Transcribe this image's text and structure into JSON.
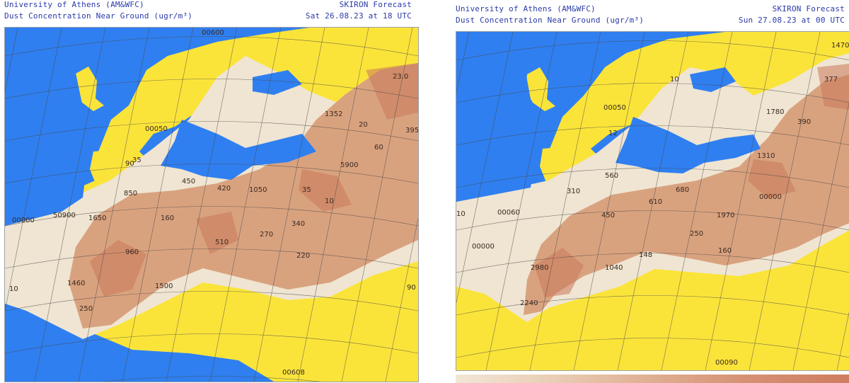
{
  "colors": {
    "sea": "#2f7ff0",
    "no_dust": "#fbe43a",
    "light_dust": "#efe5d2",
    "medium_dust": "#d9a27f",
    "high_dust": "#c9785a",
    "header_text": "#2a3aa8",
    "borders": "#4a4a4a"
  },
  "panels": [
    {
      "header_left_1": "University of Athens (AM&WFC)",
      "header_left_2": "Dust Concentration Near Ground (ugr/m³)",
      "header_right_1": "SKIRON Forecast",
      "header_right_2": "Sat 26.08.23 at 18 UTC",
      "labels": [
        "00600",
        "23.0",
        "1352",
        "395",
        "20",
        "60",
        "35",
        "00050",
        "90",
        "5900",
        "450",
        "420",
        "1050",
        "35",
        "10",
        "00000",
        "850",
        "1650",
        "50900",
        "160",
        "340",
        "270",
        "960",
        "510",
        "220",
        "1460",
        "1500",
        "250",
        "90",
        "00608",
        "10"
      ]
    },
    {
      "header_left_1": "University of Athens (AM&WFC)",
      "header_left_2": "Dust Concentration Near Ground (ugr/m³)",
      "header_right_1": "SKIRON Forecast",
      "header_right_2": "Sun 27.08.23 at 00 UTC",
      "labels": [
        "1470",
        "377",
        "10",
        "1780",
        "390",
        "00050",
        "12",
        "1310",
        "560",
        "00000",
        "680",
        "310",
        "610",
        "10",
        "00060",
        "450",
        "1970",
        "00000",
        "250",
        "148",
        "160",
        "2980",
        "1040",
        "2240",
        "00090"
      ]
    }
  ]
}
